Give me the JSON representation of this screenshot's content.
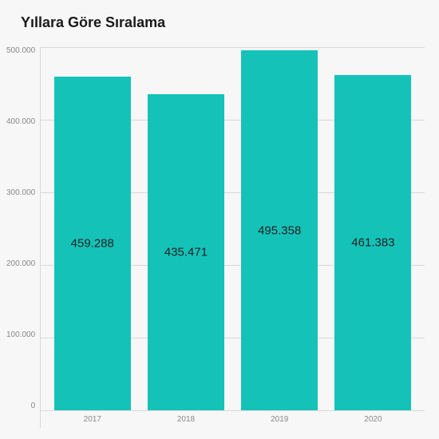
{
  "chart": {
    "type": "bar",
    "title": "Yıllara Göre Sıralama",
    "title_fontsize": 18,
    "title_fontweight": 700,
    "background_color": "#f7f7f7",
    "bar_color": "#15c2b8",
    "grid_color": "#d8d8d8",
    "label_color": "#222",
    "tick_color": "#888",
    "tick_fontsize": 10,
    "bar_label_fontsize": 15,
    "categories": [
      "2017",
      "2018",
      "2019",
      "2020"
    ],
    "values": [
      459288,
      435471,
      495358,
      461383
    ],
    "value_labels": [
      "459.288",
      "435.471",
      "495.358",
      "461.383"
    ],
    "ylim": [
      0,
      500000
    ],
    "yticks": [
      500000,
      400000,
      300000,
      200000,
      100000,
      0
    ],
    "ytick_labels": [
      "500.000",
      "400.000",
      "300.000",
      "200.000",
      "100.000",
      "0"
    ],
    "bar_width": 0.82
  }
}
